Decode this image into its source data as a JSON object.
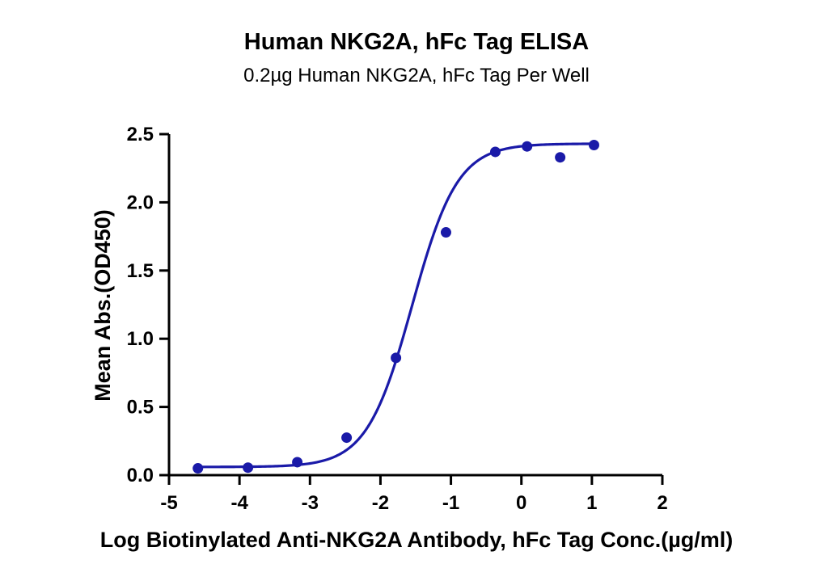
{
  "chart_data": {
    "type": "scatter",
    "title": "Human NKG2A, hFc Tag ELISA",
    "subtitle": "0.2µg Human NKG2A, hFc Tag Per Well",
    "xlabel": "Log Biotinylated Anti-NKG2A Antibody, hFc Tag Conc.(µg/ml)",
    "ylabel": "Mean Abs.(OD450)",
    "xlim": [
      -5,
      2
    ],
    "ylim": [
      0,
      2.5
    ],
    "x_ticks": [
      "-5",
      "-4",
      "-3",
      "-2",
      "-1",
      "0",
      "1",
      "2"
    ],
    "y_ticks": [
      "0.0",
      "0.5",
      "1.0",
      "1.5",
      "2.0",
      "2.5"
    ],
    "grid": false,
    "legend": "none",
    "series": [
      {
        "color": "#1a1aa8",
        "x": [
          -4.59,
          -3.88,
          -3.18,
          -2.48,
          -1.78,
          -1.07,
          -0.37,
          0.08,
          0.55,
          1.03
        ],
        "y": [
          0.05,
          0.055,
          0.095,
          0.275,
          0.86,
          1.78,
          2.37,
          2.41,
          2.33,
          2.42
        ],
        "fit": {
          "model": "4PL",
          "bottom": 0.06,
          "top": 2.43,
          "log_ec50": -1.55,
          "hill_slope": 1.35
        }
      }
    ]
  }
}
